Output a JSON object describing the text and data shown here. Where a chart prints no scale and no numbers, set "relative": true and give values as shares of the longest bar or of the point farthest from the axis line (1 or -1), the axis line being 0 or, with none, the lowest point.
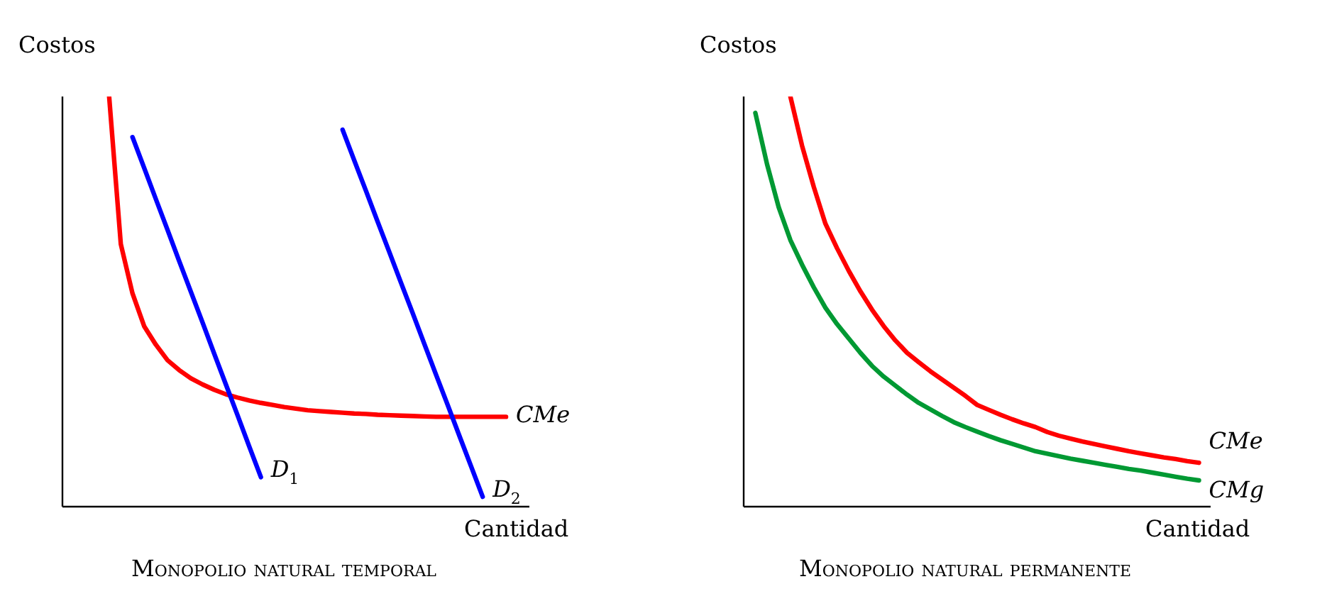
{
  "chart_data": [
    {
      "type": "line",
      "title": "Monopolio natural temporal",
      "xlabel": "Cantidad",
      "ylabel": "Costos",
      "relative": true,
      "tick_labels": false,
      "legend": false,
      "line_style": "solid",
      "categories": [
        null,
        null,
        null,
        null,
        null,
        null,
        null,
        null,
        null,
        null,
        null,
        null,
        null,
        null,
        null,
        null,
        null,
        null,
        null,
        null,
        null,
        null,
        null,
        null,
        null,
        null,
        null,
        null,
        null,
        null,
        null,
        null,
        null,
        null,
        null,
        null,
        null,
        null,
        null,
        null,
        null
      ],
      "series": [
        {
          "name": "CMe",
          "color": "#ff0000",
          "values": [
            null,
            null,
            null,
            null,
            1.0,
            0.64,
            0.52,
            0.44,
            0.395,
            0.357,
            0.333,
            0.313,
            0.298,
            0.285,
            0.274,
            0.266,
            0.259,
            0.253,
            0.248,
            0.243,
            0.239,
            0.235,
            0.233,
            0.231,
            0.229,
            0.227,
            0.226,
            0.224,
            0.223,
            0.222,
            0.221,
            0.22,
            0.219,
            0.219,
            0.219,
            0.219,
            0.219,
            0.219,
            0.219,
            null,
            null
          ]
        },
        {
          "name": "D$_{1}$",
          "color": "#0000ff",
          "values": [
            null,
            null,
            null,
            null,
            null,
            null,
            0.901,
            0.826,
            0.75,
            0.675,
            0.599,
            0.524,
            0.449,
            0.373,
            0.298,
            0.223,
            0.147,
            0.072,
            null,
            null,
            null,
            null,
            null,
            null,
            null,
            null,
            null,
            null,
            null,
            null,
            null,
            null,
            null,
            null,
            null,
            null,
            null,
            null,
            null,
            null,
            null
          ]
        },
        {
          "name": "D$_{2}$",
          "color": "#0000ff",
          "values": [
            null,
            null,
            null,
            null,
            null,
            null,
            null,
            null,
            null,
            null,
            null,
            null,
            null,
            null,
            null,
            null,
            null,
            null,
            null,
            null,
            null,
            null,
            null,
            null,
            0.919,
            0.844,
            0.77,
            0.695,
            0.621,
            0.546,
            0.472,
            0.397,
            0.322,
            0.248,
            0.173,
            0.099,
            0.024,
            null,
            null,
            null,
            null
          ]
        }
      ]
    },
    {
      "type": "line",
      "title": "Monopolio natural permanente",
      "xlabel": "Cantidad",
      "ylabel": "Costos",
      "relative": true,
      "tick_labels": false,
      "legend": false,
      "line_style": "solid",
      "categories": [
        null,
        null,
        null,
        null,
        null,
        null,
        null,
        null,
        null,
        null,
        null,
        null,
        null,
        null,
        null,
        null,
        null,
        null,
        null,
        null,
        null,
        null,
        null,
        null,
        null,
        null,
        null,
        null,
        null,
        null,
        null,
        null,
        null,
        null,
        null,
        null,
        null,
        null,
        null,
        null,
        null
      ],
      "series": [
        {
          "name": "CMe",
          "color": "#ff0000",
          "values": [
            null,
            null,
            null,
            null,
            1.0,
            0.88,
            0.78,
            0.69,
            0.63,
            0.575,
            0.525,
            0.48,
            0.44,
            0.405,
            0.375,
            0.352,
            0.33,
            0.31,
            0.29,
            0.27,
            0.248,
            0.236,
            0.224,
            0.213,
            0.203,
            0.194,
            0.182,
            0.173,
            0.166,
            0.159,
            0.153,
            0.147,
            0.141,
            0.135,
            0.13,
            0.125,
            0.12,
            0.116,
            0.111,
            0.107,
            null
          ]
        },
        {
          "name": "CMg",
          "color": "#009933",
          "values": [
            null,
            0.96,
            0.835,
            0.73,
            0.65,
            0.59,
            0.535,
            0.485,
            0.445,
            0.41,
            0.375,
            0.343,
            0.317,
            0.295,
            0.273,
            0.253,
            0.237,
            0.221,
            0.206,
            0.194,
            0.183,
            0.172,
            0.162,
            0.153,
            0.144,
            0.135,
            0.129,
            0.123,
            0.117,
            0.112,
            0.107,
            0.102,
            0.097,
            0.092,
            0.088,
            0.083,
            0.078,
            0.073,
            0.068,
            0.064,
            null
          ]
        }
      ]
    }
  ]
}
